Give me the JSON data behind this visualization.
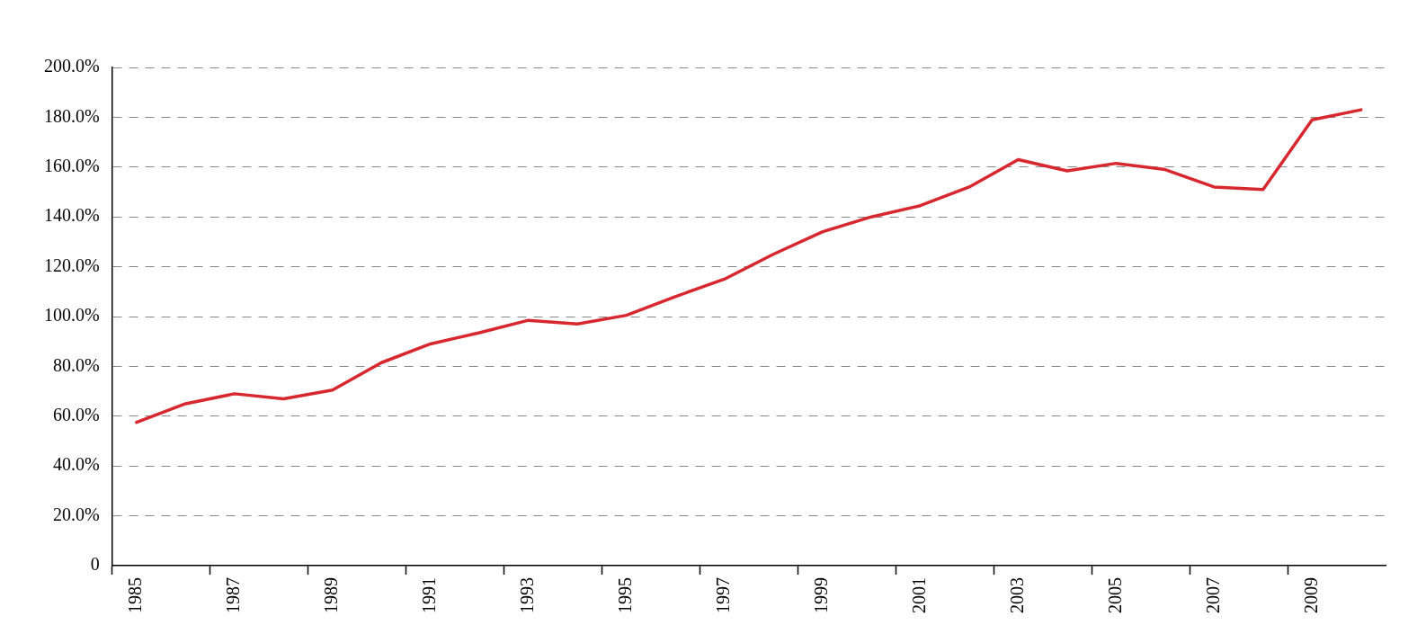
{
  "chart_data": {
    "type": "line",
    "categories": [
      "1985",
      null,
      "1987",
      null,
      "1989",
      null,
      "1991",
      null,
      "1993",
      null,
      "1995",
      null,
      "1997",
      null,
      "1999",
      null,
      "2001",
      null,
      "2003",
      null,
      "2005",
      null,
      "2007",
      null,
      "2009",
      null
    ],
    "series": [
      {
        "color": "#d7282f",
        "values": [
          57.5,
          65,
          69,
          67,
          70.5,
          81.5,
          89,
          93.5,
          98.5,
          97,
          100.5,
          108,
          115,
          125,
          134,
          140,
          144.5,
          152,
          163,
          158.5,
          161.5,
          159,
          152,
          151,
          179,
          183
        ]
      }
    ],
    "ylim": [
      0,
      200
    ],
    "yticks": [
      0,
      {
        "value": 20,
        "label": "20.0%"
      },
      {
        "value": 40,
        "label": "40.0%"
      },
      {
        "value": 60,
        "label": "60.0%"
      },
      {
        "value": 80,
        "label": "80.0%"
      },
      {
        "value": 100,
        "label": "100.0%"
      },
      {
        "value": 120,
        "label": "120.0%"
      },
      {
        "value": 140,
        "label": "140.0%"
      },
      {
        "value": 160,
        "label": "160.0%"
      },
      {
        "value": 180,
        "label": "180.0%"
      },
      {
        "value": 200,
        "label": "200.0%"
      }
    ],
    "grid": "y",
    "legend": false,
    "marker": "none",
    "line_style": "solid"
  }
}
